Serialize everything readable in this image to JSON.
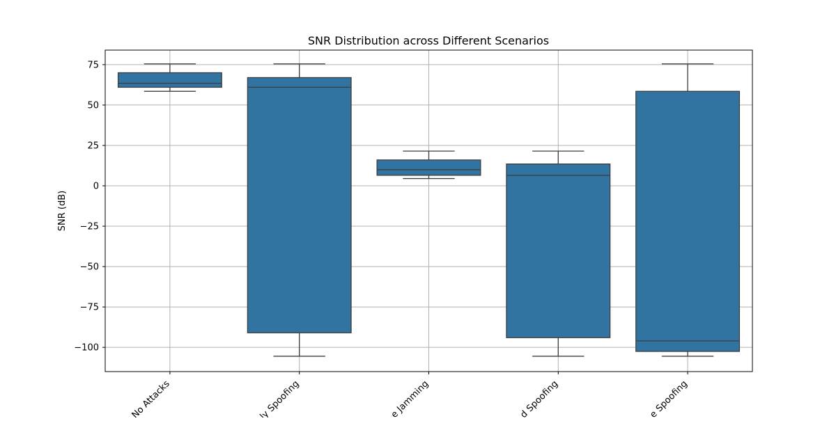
{
  "chart_data": {
    "type": "box",
    "title": "SNR Distribution across Different Scenarios",
    "xlabel": "",
    "ylabel": "SNR (dB)",
    "ylim": [
      -115,
      84
    ],
    "yticks": [
      75,
      50,
      25,
      0,
      -25,
      -50,
      -75,
      -100
    ],
    "ytick_labels": [
      "75",
      "50",
      "25",
      "0",
      "−25",
      "−50",
      "−75",
      "−100"
    ],
    "grid": true,
    "box_color": "#3274a1",
    "line_color": "#3d3d3d",
    "categories": [
      {
        "label": "No Attacks",
        "whisker_low": 58.5,
        "q1": 61,
        "median": 63.5,
        "q3": 70,
        "whisker_high": 75.5
      },
      {
        "label": "ly Spoofing",
        "whisker_low": -105.5,
        "q1": -91,
        "median": 61,
        "q3": 67,
        "whisker_high": 75.5
      },
      {
        "label": "e Jamming",
        "whisker_low": 4.5,
        "q1": 6.5,
        "median": 10,
        "q3": 16,
        "whisker_high": 21.5
      },
      {
        "label": "d Spoofing",
        "whisker_low": -105.5,
        "q1": -94,
        "median": 6.5,
        "q3": 13.5,
        "whisker_high": 21.5
      },
      {
        "label": "e Spoofing",
        "whisker_low": -105.5,
        "q1": -102.5,
        "median": -96,
        "q3": 58.5,
        "whisker_high": 75.5
      }
    ]
  }
}
